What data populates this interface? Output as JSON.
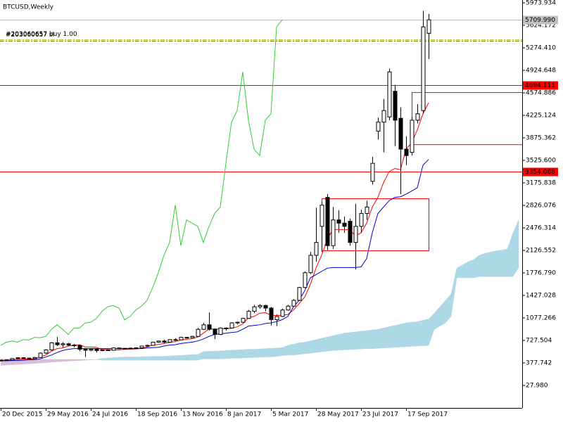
{
  "chart_data": {
    "type": "candlestick",
    "title": "BTCUSD,Weekly",
    "x_labels": [
      "20 Dec 2015",
      "29 May 2016",
      "24 Jul 2016",
      "18 Sep 2016",
      "13 Nov 2016",
      "8 Jan 2017",
      "5 Mar 2017",
      "28 May 2017",
      "23 Jul 2017",
      "17 Sep 2017"
    ],
    "open": [
      415,
      420,
      424,
      446,
      458,
      452,
      445,
      462,
      530,
      580,
      690,
      660,
      675,
      655,
      650,
      590,
      575,
      590,
      570,
      580,
      575,
      610,
      605,
      600,
      608,
      612,
      640,
      650,
      700,
      718,
      700,
      740,
      735,
      775,
      770,
      790,
      900,
      970,
      900,
      820,
      920,
      920,
      1000,
      1010,
      1070,
      1180,
      1250,
      1270,
      1230,
      1050,
      1100,
      1200,
      1260,
      1350,
      1550,
      1780,
      2050,
      2500,
      2950,
      2200,
      2600,
      2550,
      2580,
      2250,
      2500,
      2700,
      3200,
      3980,
      4120,
      4200,
      4600,
      4180,
      3700,
      3650,
      4150,
      4300,
      5500
    ],
    "high": [
      430,
      428,
      450,
      462,
      466,
      458,
      470,
      540,
      590,
      700,
      780,
      700,
      690,
      670,
      660,
      600,
      600,
      600,
      590,
      590,
      620,
      615,
      612,
      615,
      618,
      645,
      660,
      705,
      725,
      740,
      745,
      760,
      785,
      780,
      800,
      920,
      1000,
      1160,
      915,
      930,
      930,
      1010,
      1020,
      1080,
      1200,
      1280,
      1290,
      1280,
      1250,
      1130,
      1220,
      1280,
      1370,
      1560,
      1800,
      2100,
      2790,
      2880,
      3000,
      2800,
      2750,
      2650,
      2620,
      2850,
      2760,
      2900,
      3580,
      4190,
      4480,
      4950,
      4700,
      4350,
      3900,
      4200,
      4400,
      5850,
      5800
    ],
    "low": [
      410,
      414,
      420,
      440,
      448,
      440,
      440,
      455,
      520,
      570,
      640,
      620,
      640,
      620,
      560,
      470,
      560,
      540,
      560,
      565,
      570,
      595,
      590,
      595,
      600,
      608,
      630,
      645,
      690,
      680,
      695,
      720,
      730,
      755,
      765,
      785,
      890,
      880,
      750,
      810,
      880,
      915,
      975,
      1000,
      1060,
      1150,
      1220,
      1180,
      960,
      950,
      1090,
      1190,
      1250,
      1340,
      1540,
      1760,
      1950,
      2100,
      2130,
      2150,
      2400,
      2400,
      2200,
      1830,
      2400,
      2600,
      3150,
      3850,
      3650,
      4150,
      3750,
      3000,
      3450,
      3600,
      4100,
      4250,
      5100
    ],
    "close": [
      420,
      424,
      446,
      458,
      452,
      445,
      462,
      530,
      580,
      690,
      660,
      675,
      655,
      650,
      590,
      575,
      590,
      570,
      580,
      575,
      610,
      605,
      600,
      608,
      612,
      640,
      650,
      700,
      718,
      700,
      740,
      735,
      775,
      770,
      790,
      900,
      970,
      900,
      820,
      920,
      920,
      1000,
      1010,
      1070,
      1180,
      1250,
      1270,
      1230,
      1050,
      1100,
      1200,
      1260,
      1350,
      1550,
      1780,
      2050,
      2250,
      2830,
      2200,
      2600,
      2550,
      2500,
      2250,
      2500,
      2700,
      2800,
      3480,
      4120,
      4300,
      4900,
      4150,
      3700,
      3600,
      4150,
      4250,
      5600,
      5710
    ],
    "up_color": "#ffffff",
    "down_color": "#000000",
    "edge_color": "#000000",
    "series": [
      {
        "color": "#ff0000",
        "values": [
          415,
          418,
          425,
          432,
          436,
          438,
          440,
          470,
          500,
          560,
          600,
          610,
          640,
          650,
          660,
          625,
          625,
          620,
          585,
          585,
          580,
          580,
          590,
          592,
          595,
          605,
          625,
          655,
          665,
          680,
          695,
          710,
          735,
          745,
          755,
          780,
          840,
          905,
          905,
          905,
          910,
          915,
          940,
          985,
          1080,
          1100,
          1150,
          1160,
          1120,
          1115,
          1120,
          1130,
          1200,
          1300,
          1400,
          1600,
          1850,
          2050,
          2300,
          2450,
          2450,
          2450,
          2450,
          2350,
          2400,
          2550,
          2800,
          2950,
          3180,
          3350,
          3400,
          3380,
          3700,
          3800,
          4000,
          4250,
          4420
        ]
      },
      {
        "color": "#0000cd",
        "values": [
          410,
          412,
          414,
          416,
          420,
          425,
          430,
          440,
          470,
          500,
          540,
          570,
          590,
          600,
          600,
          600,
          600,
          600,
          600,
          600,
          600,
          600,
          600,
          600,
          600,
          600,
          610,
          615,
          620,
          640,
          655,
          660,
          680,
          690,
          700,
          720,
          750,
          790,
          820,
          830,
          840,
          850,
          860,
          900,
          950,
          960,
          970,
          990,
          1000,
          1020,
          1050,
          1100,
          1250,
          1350,
          1500,
          1700,
          1750,
          1800,
          1850,
          1860,
          1860,
          1860,
          1860,
          1860,
          1870,
          2000,
          2400,
          2700,
          2800,
          2900,
          2950,
          2960,
          3000,
          3050,
          3100,
          3450,
          3540
        ]
      },
      {
        "color": "#32cd32",
        "values": [
          650,
          700,
          718,
          700,
          740,
          735,
          775,
          770,
          790,
          900,
          970,
          900,
          820,
          920,
          920,
          1000,
          1010,
          1070,
          1180,
          1250,
          1270,
          1230,
          1050,
          1100,
          1200,
          1260,
          1350,
          1550,
          1780,
          2050,
          2250,
          2830,
          2200,
          2600,
          2550,
          2500,
          2250,
          2500,
          2700,
          2800,
          3480,
          4120,
          4300,
          4900,
          4150,
          3700,
          3600,
          4150,
          4250,
          5600,
          5710,
          null,
          null,
          null,
          null,
          null,
          null,
          null,
          null,
          null,
          null,
          null,
          null,
          null,
          null,
          null,
          null,
          null,
          null,
          null,
          null,
          null,
          null,
          null,
          null,
          null,
          null
        ]
      }
    ],
    "cloud": {
      "up_color": "#add8e6",
      "down_color": "#d8bfd8",
      "span_a": [
        340,
        345,
        350,
        355,
        360,
        365,
        370,
        375,
        380,
        390,
        395,
        400,
        405,
        410,
        415,
        420,
        425,
        430,
        450,
        455,
        460,
        465,
        470,
        470,
        470,
        475,
        475,
        480,
        480,
        480,
        485,
        490,
        495,
        500,
        505,
        510,
        555,
        560,
        560,
        565,
        570,
        575,
        580,
        585,
        590,
        590,
        595,
        600,
        605,
        610,
        615,
        650,
        670,
        690,
        700,
        720,
        740,
        760,
        780,
        800,
        820,
        840,
        850,
        860,
        870,
        880,
        890,
        900,
        920,
        940,
        960,
        980,
        1000,
        1010,
        1020,
        1040,
        1060,
        1150,
        1250,
        1350,
        1450,
        1850,
        1900,
        1950,
        1980,
        2050,
        2080,
        2100,
        2120,
        2130,
        2150,
        2400,
        2600
      ],
      "span_b": [
        440,
        440,
        440,
        438,
        436,
        435,
        434,
        432,
        432,
        432,
        432,
        432,
        432,
        432,
        432,
        432,
        430,
        428,
        420,
        420,
        420,
        420,
        420,
        420,
        420,
        420,
        420,
        420,
        420,
        420,
        420,
        420,
        420,
        420,
        420,
        420,
        440,
        440,
        440,
        440,
        445,
        450,
        450,
        455,
        460,
        460,
        465,
        470,
        470,
        480,
        490,
        500,
        500,
        510,
        520,
        530,
        540,
        550,
        560,
        570,
        575,
        580,
        585,
        590,
        595,
        600,
        600,
        605,
        610,
        615,
        620,
        625,
        630,
        635,
        640,
        645,
        650,
        900,
        950,
        1000,
        1100,
        1700,
        1700,
        1700,
        1700,
        1720,
        1720,
        1720,
        1720,
        1720,
        1720,
        1720,
        1860
      ]
    },
    "levels": [
      {
        "value": 5709.99,
        "label": "5709.990",
        "color": "#c0c0c0"
      },
      {
        "value": 4694.111,
        "color": "#ff0000"
      },
      {
        "value": 3354.088,
        "color": "#ff0000"
      }
    ],
    "orders": [
      {
        "label": "#203060657 sl",
        "value": 5410,
        "color": "#9acd32"
      },
      {
        "label": "#203060657 buy 1.00",
        "value": 5380,
        "color": "#808000"
      }
    ],
    "rectangles": [
      {
        "x": [
          57,
          76
        ],
        "y": [
          2126,
          2935
        ],
        "color": "#ff0000"
      },
      {
        "x": [
          73,
          93
        ],
        "y": [
          3775,
          4585
        ],
        "color": "#ff0000"
      }
    ],
    "ylim": [
      -321.8,
      6017.6
    ],
    "yticks": [
      5973.934,
      5624.172,
      {
        "value": 5274.41,
        "label": "5274.410"
      },
      4924.648,
      4574.886,
      4225.124,
      3875.362,
      {
        "value": 3525.6,
        "label": "3525.600"
      },
      3175.838,
      2826.076,
      2476.314,
      2126.552,
      {
        "value": 1776.79,
        "label": "1776.790"
      },
      1427.028,
      1077.266,
      727.504,
      377.742,
      {
        "value": 27.98,
        "label": "27.980"
      }
    ]
  }
}
